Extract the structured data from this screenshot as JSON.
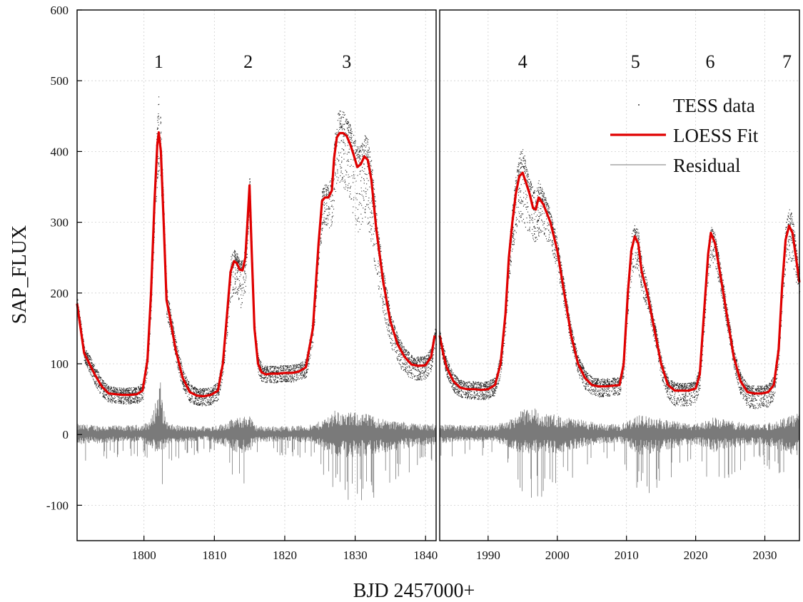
{
  "chart_data": {
    "type": "scatter",
    "xlabel": "BJD 2457000+",
    "ylabel": "SAP_FLUX",
    "ylim": [
      -150,
      600
    ],
    "yticks": [
      -100,
      0,
      100,
      200,
      300,
      400,
      500,
      600
    ],
    "grid": true,
    "legend": {
      "placement": "top-right",
      "entries": [
        {
          "name": "TESS data",
          "style": "points",
          "color": "#000000"
        },
        {
          "name": "LOESS Fit",
          "style": "line",
          "color": "#e00000"
        },
        {
          "name": "Residual",
          "style": "line",
          "color": "#7a7a7a"
        }
      ]
    },
    "panels": [
      {
        "name": "left",
        "xlim": [
          1790.5,
          1841.5
        ],
        "xticks": [
          1800,
          1810,
          1820,
          1830,
          1840
        ],
        "peaks": [
          {
            "label": "1",
            "x": 1802.1,
            "y": 500
          },
          {
            "label": "2",
            "x": 1814.8,
            "y": 500
          },
          {
            "label": "3",
            "x": 1828.8,
            "y": 500
          }
        ],
        "loess_fit": {
          "x": [
            1790.5,
            1791.0,
            1791.5,
            1792.0,
            1793.0,
            1794.0,
            1795.0,
            1796.0,
            1797.0,
            1798.0,
            1799.0,
            1799.8,
            1800.5,
            1801.0,
            1801.5,
            1801.9,
            1802.1,
            1802.4,
            1802.8,
            1803.2,
            1803.7,
            1804.5,
            1805.5,
            1806.5,
            1807.5,
            1808.5,
            1809.5,
            1810.5,
            1811.2,
            1811.8,
            1812.3,
            1812.8,
            1813.2,
            1813.6,
            1814.0,
            1814.4,
            1814.7,
            1815.0,
            1815.3,
            1815.7,
            1816.2,
            1816.7,
            1817.3,
            1818.0,
            1819.0,
            1820.0,
            1821.0,
            1822.0,
            1823.0,
            1824.0,
            1824.8,
            1825.3,
            1825.7,
            1826.2,
            1826.7,
            1827.0,
            1827.4,
            1827.8,
            1828.3,
            1828.8,
            1829.3,
            1829.8,
            1830.3,
            1830.8,
            1831.3,
            1831.8,
            1832.3,
            1833.0,
            1834.0,
            1835.0,
            1836.0,
            1837.0,
            1838.0,
            1839.0,
            1840.0,
            1840.8,
            1841.3
          ],
          "y": [
            185,
            150,
            115,
            105,
            85,
            68,
            58,
            57,
            56,
            56,
            57,
            62,
            105,
            200,
            330,
            410,
            427,
            400,
            300,
            190,
            165,
            120,
            80,
            60,
            55,
            54,
            56,
            62,
            100,
            170,
            230,
            245,
            242,
            233,
            232,
            250,
            300,
            352,
            260,
            150,
            100,
            88,
            85,
            86,
            86,
            87,
            87,
            89,
            95,
            150,
            270,
            330,
            335,
            335,
            345,
            390,
            420,
            426,
            426,
            422,
            410,
            395,
            378,
            382,
            393,
            388,
            360,
            290,
            215,
            160,
            128,
            110,
            99,
            97,
            98,
            110,
            140
          ]
        },
        "scatter_envelope": {
          "x": [
            1790.5,
            1791.0,
            1791.5,
            1792.0,
            1793.0,
            1794.0,
            1795.0,
            1796.0,
            1797.0,
            1798.0,
            1799.0,
            1799.8,
            1800.5,
            1801.0,
            1801.5,
            1801.9,
            1802.1,
            1802.4,
            1802.8,
            1803.2,
            1803.7,
            1804.5,
            1805.5,
            1806.5,
            1807.5,
            1808.5,
            1809.5,
            1810.5,
            1811.2,
            1811.8,
            1812.3,
            1812.8,
            1813.2,
            1813.6,
            1814.0,
            1814.4,
            1814.7,
            1815.0,
            1815.3,
            1815.7,
            1816.2,
            1816.7,
            1817.3,
            1818.0,
            1819.0,
            1820.0,
            1821.0,
            1822.0,
            1823.0,
            1824.0,
            1824.8,
            1825.3,
            1825.7,
            1826.2,
            1826.7,
            1827.0,
            1827.4,
            1827.8,
            1828.3,
            1828.8,
            1829.3,
            1829.8,
            1830.3,
            1830.8,
            1831.3,
            1831.8,
            1832.3,
            1833.0,
            1834.0,
            1835.0,
            1836.0,
            1837.0,
            1838.0,
            1839.0,
            1840.0,
            1840.8,
            1841.3
          ],
          "upper": [
            195,
            162,
            125,
            117,
            99,
            79,
            69,
            68,
            67,
            67,
            68,
            75,
            122,
            225,
            365,
            455,
            495,
            440,
            330,
            210,
            182,
            135,
            93,
            72,
            67,
            66,
            68,
            75,
            115,
            192,
            255,
            262,
            258,
            248,
            247,
            268,
            320,
            368,
            275,
            162,
            113,
            100,
            98,
            98,
            98,
            99,
            99,
            101,
            108,
            166,
            290,
            350,
            355,
            355,
            368,
            420,
            455,
            462,
            460,
            450,
            440,
            425,
            410,
            412,
            428,
            420,
            390,
            315,
            235,
            175,
            142,
            124,
            113,
            111,
            112,
            124,
            150
          ],
          "lower": [
            170,
            138,
            103,
            93,
            70,
            53,
            45,
            44,
            43,
            43,
            44,
            48,
            88,
            170,
            290,
            360,
            375,
            350,
            260,
            165,
            148,
            103,
            65,
            45,
            41,
            40,
            42,
            47,
            82,
            140,
            190,
            200,
            195,
            180,
            175,
            205,
            265,
            330,
            240,
            135,
            86,
            74,
            72,
            73,
            73,
            74,
            74,
            76,
            80,
            128,
            235,
            290,
            295,
            290,
            295,
            330,
            355,
            355,
            350,
            340,
            320,
            300,
            285,
            290,
            305,
            295,
            265,
            215,
            170,
            125,
            100,
            85,
            78,
            76,
            78,
            90,
            125
          ]
        },
        "residual_envelope": {
          "x": [
            1790.5,
            1792.5,
            1795.0,
            1798.0,
            1800.0,
            1801.0,
            1801.8,
            1802.3,
            1802.8,
            1803.5,
            1806.0,
            1809.0,
            1811.0,
            1812.5,
            1814.0,
            1815.0,
            1815.6,
            1816.5,
            1820.0,
            1824.0,
            1825.5,
            1827.0,
            1828.5,
            1830.0,
            1831.5,
            1833.0,
            1835.0,
            1837.0,
            1839.0,
            1841.3
          ],
          "upper": [
            15,
            14,
            13,
            13,
            15,
            22,
            55,
            80,
            35,
            15,
            12,
            12,
            15,
            22,
            25,
            30,
            15,
            12,
            12,
            14,
            22,
            35,
            30,
            32,
            30,
            25,
            20,
            18,
            16,
            15
          ],
          "lower": [
            -45,
            -40,
            -35,
            -30,
            -35,
            -55,
            -80,
            -110,
            -70,
            -40,
            -30,
            -28,
            -45,
            -70,
            -85,
            -80,
            -45,
            -32,
            -30,
            -35,
            -65,
            -90,
            -100,
            -98,
            -95,
            -90,
            -75,
            -60,
            -50,
            -45
          ]
        }
      },
      {
        "name": "right",
        "xlim": [
          1983.0,
          2035.0
        ],
        "xticks": [
          1990,
          2000,
          2010,
          2020,
          2030
        ],
        "peaks": [
          {
            "label": "4",
            "x": 1995.0,
            "y": 500
          },
          {
            "label": "5",
            "x": 2011.3,
            "y": 500
          },
          {
            "label": "6",
            "x": 2022.1,
            "y": 500
          },
          {
            "label": "7",
            "x": 2033.2,
            "y": 500
          }
        ],
        "loess_fit": {
          "x": [
            1983.0,
            1983.5,
            1984.0,
            1985.0,
            1986.0,
            1987.0,
            1988.0,
            1989.0,
            1990.0,
            1991.0,
            1991.8,
            1992.5,
            1993.0,
            1993.5,
            1994.0,
            1994.5,
            1995.0,
            1995.5,
            1996.0,
            1996.5,
            1996.9,
            1997.3,
            1998.0,
            1999.0,
            2000.0,
            2001.0,
            2002.0,
            2003.0,
            2004.0,
            2005.0,
            2006.0,
            2007.0,
            2008.0,
            2009.0,
            2009.6,
            2010.2,
            2010.7,
            2011.2,
            2011.7,
            2012.2,
            2013.0,
            2014.0,
            2015.0,
            2016.0,
            2017.0,
            2018.0,
            2019.0,
            2020.0,
            2020.6,
            2021.2,
            2021.8,
            2022.2,
            2022.8,
            2023.5,
            2024.5,
            2025.5,
            2026.5,
            2027.5,
            2028.5,
            2029.5,
            2030.5,
            2031.3,
            2032.0,
            2032.5,
            2033.0,
            2033.5,
            2034.0,
            2034.5,
            2035.0
          ],
          "y": [
            140,
            115,
            95,
            75,
            66,
            64,
            64,
            63,
            64,
            70,
            100,
            170,
            250,
            300,
            340,
            365,
            370,
            355,
            340,
            320,
            318,
            335,
            325,
            300,
            260,
            200,
            140,
            100,
            80,
            70,
            68,
            68,
            69,
            70,
            100,
            200,
            260,
            280,
            270,
            230,
            200,
            150,
            100,
            70,
            62,
            62,
            62,
            65,
            85,
            170,
            255,
            285,
            270,
            230,
            170,
            110,
            75,
            60,
            58,
            58,
            60,
            70,
            120,
            210,
            275,
            295,
            285,
            250,
            215
          ]
        },
        "scatter_envelope": {
          "x": [
            1983.0,
            1983.5,
            1984.0,
            1985.0,
            1986.0,
            1987.0,
            1988.0,
            1989.0,
            1990.0,
            1991.0,
            1991.8,
            1992.5,
            1993.0,
            1993.5,
            1994.0,
            1994.5,
            1995.0,
            1995.5,
            1996.0,
            1996.5,
            1996.9,
            1997.3,
            1998.0,
            1999.0,
            2000.0,
            2001.0,
            2002.0,
            2003.0,
            2004.0,
            2005.0,
            2006.0,
            2007.0,
            2008.0,
            2009.0,
            2009.6,
            2010.2,
            2010.7,
            2011.2,
            2011.7,
            2012.2,
            2013.0,
            2014.0,
            2015.0,
            2016.0,
            2017.0,
            2018.0,
            2019.0,
            2020.0,
            2020.6,
            2021.2,
            2021.8,
            2022.2,
            2022.8,
            2023.5,
            2024.5,
            2025.5,
            2026.5,
            2027.5,
            2028.5,
            2029.5,
            2030.5,
            2031.3,
            2032.0,
            2032.5,
            2033.0,
            2033.5,
            2034.0,
            2034.5,
            2035.0
          ],
          "upper": [
            150,
            126,
            107,
            87,
            78,
            76,
            76,
            75,
            76,
            83,
            115,
            188,
            272,
            325,
            370,
            400,
            410,
            385,
            365,
            350,
            345,
            362,
            345,
            318,
            276,
            215,
            153,
            112,
            92,
            82,
            80,
            80,
            81,
            82,
            115,
            220,
            285,
            300,
            290,
            248,
            215,
            163,
            112,
            82,
            74,
            74,
            74,
            77,
            100,
            190,
            275,
            295,
            285,
            245,
            183,
            122,
            87,
            72,
            70,
            70,
            72,
            84,
            138,
            235,
            300,
            325,
            310,
            270,
            232
          ],
          "lower": [
            125,
            102,
            82,
            60,
            52,
            50,
            50,
            49,
            50,
            55,
            82,
            145,
            215,
            255,
            285,
            300,
            300,
            290,
            285,
            270,
            270,
            280,
            280,
            265,
            230,
            178,
            122,
            84,
            64,
            55,
            53,
            53,
            54,
            55,
            82,
            170,
            220,
            235,
            230,
            198,
            175,
            130,
            80,
            48,
            40,
            40,
            40,
            44,
            65,
            145,
            220,
            245,
            235,
            205,
            150,
            92,
            55,
            38,
            36,
            36,
            38,
            50,
            100,
            180,
            235,
            250,
            240,
            215,
            195
          ]
        },
        "residual_envelope": {
          "x": [
            1983.0,
            1985.0,
            1988.0,
            1991.0,
            1993.0,
            1995.0,
            1996.5,
            1998.0,
            2000.0,
            2003.0,
            2006.0,
            2009.0,
            2010.5,
            2012.0,
            2014.0,
            2016.0,
            2019.0,
            2021.0,
            2022.5,
            2024.0,
            2026.0,
            2028.0,
            2030.0,
            2032.0,
            2033.5,
            2035.0
          ],
          "upper": [
            15,
            14,
            13,
            14,
            20,
            35,
            40,
            30,
            28,
            22,
            16,
            14,
            22,
            28,
            25,
            20,
            16,
            18,
            25,
            22,
            18,
            16,
            16,
            20,
            28,
            30
          ],
          "lower": [
            -40,
            -35,
            -30,
            -32,
            -55,
            -85,
            -90,
            -88,
            -80,
            -60,
            -40,
            -35,
            -60,
            -90,
            -85,
            -65,
            -45,
            -50,
            -75,
            -70,
            -55,
            -45,
            -48,
            -65,
            -90,
            -95
          ]
        }
      }
    ]
  }
}
